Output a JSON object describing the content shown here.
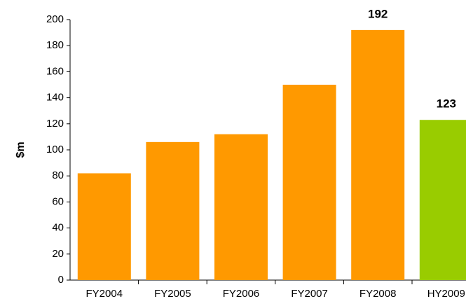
{
  "chart_data": {
    "type": "bar",
    "y_label": "$m",
    "categories": [
      "FY2004",
      "FY2005",
      "FY2006",
      "FY2007",
      "FY2008",
      "HY2009"
    ],
    "values": [
      82,
      106,
      112,
      150,
      192,
      123
    ],
    "value_labels": [
      null,
      null,
      null,
      null,
      "192",
      "123"
    ],
    "colors": [
      "#ff9900",
      "#ff9900",
      "#ff9900",
      "#ff9900",
      "#ff9900",
      "#99cc00"
    ],
    "ylim": [
      0,
      200
    ],
    "yticks": [
      0,
      20,
      40,
      60,
      80,
      100,
      120,
      140,
      160,
      180,
      200
    ],
    "grid": false
  }
}
